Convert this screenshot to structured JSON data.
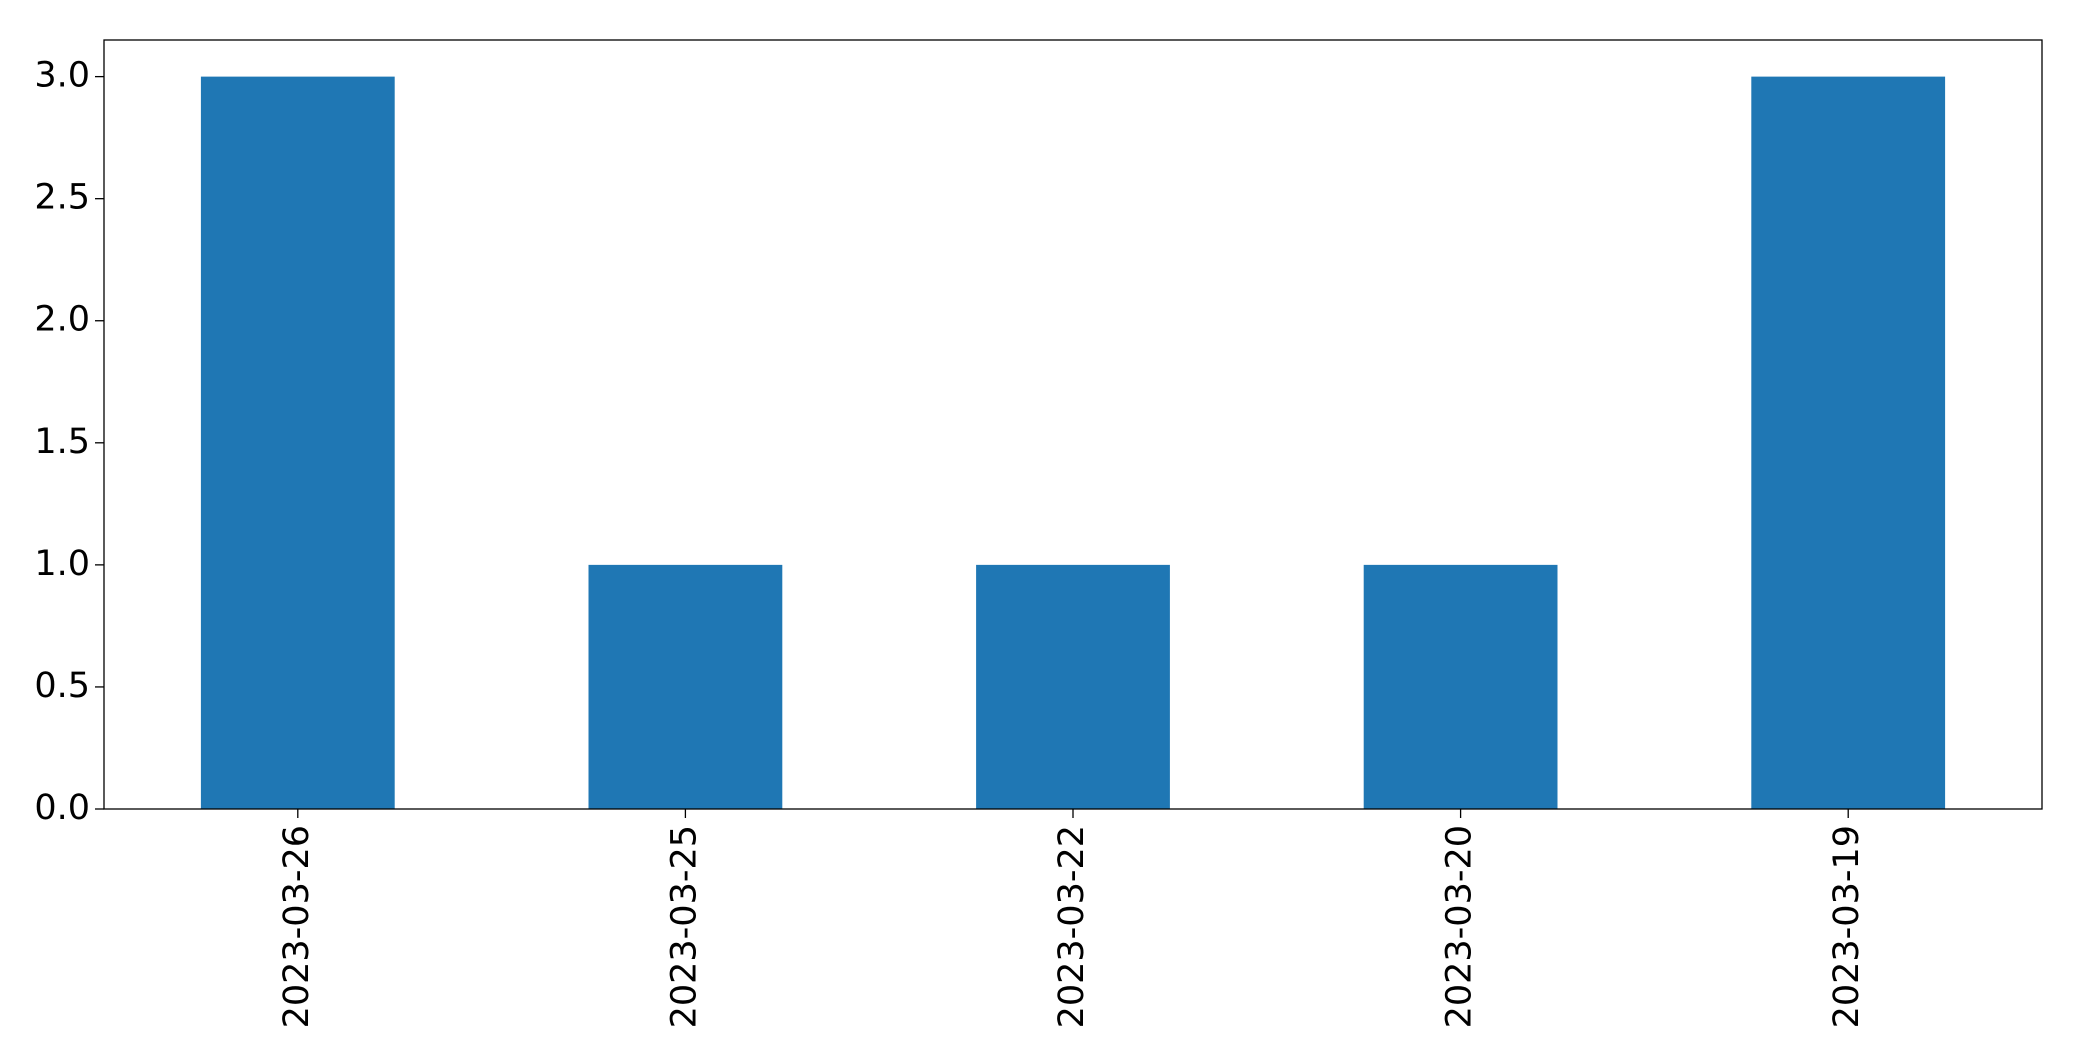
{
  "chart_data": {
    "type": "bar",
    "categories": [
      "2023-03-26",
      "2023-03-25",
      "2023-03-22",
      "2023-03-20",
      "2023-03-19"
    ],
    "values": [
      3,
      1,
      1,
      1,
      3
    ],
    "color": "#1f77b4",
    "ylim": [
      0,
      3.15
    ],
    "yticks": [
      {
        "value": 0,
        "label": "0.0"
      },
      0.5,
      {
        "value": 1,
        "label": "1.0"
      },
      1.5,
      {
        "value": 2,
        "label": "2.0"
      },
      2.5,
      {
        "value": 3,
        "label": "3.0"
      }
    ],
    "grid": false
  }
}
